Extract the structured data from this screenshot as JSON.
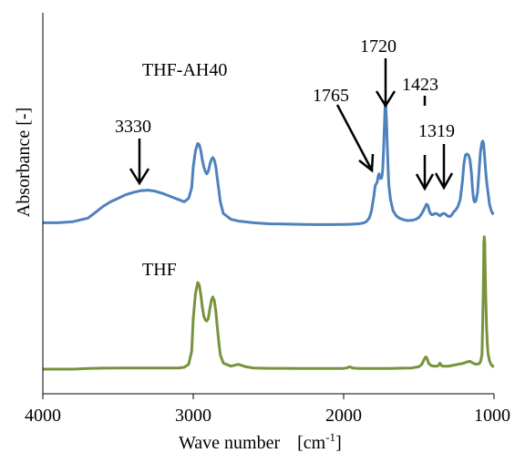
{
  "chart_data": {
    "type": "line",
    "title": "",
    "xlabel": "Wave number",
    "xlabel_unit_base": "[cm",
    "xlabel_unit_exp": "-1",
    "xlabel_unit_close": "]",
    "ylabel": "Absorbance [-]",
    "xlim": [
      4000,
      1000
    ],
    "x_reversed": true,
    "y_ticks_shown": false,
    "grid": false,
    "x_tick_labels": [
      "4000",
      "3000",
      "2000",
      "1000"
    ],
    "series": [
      {
        "name": "THF-AH40",
        "color": "#4f81bd",
        "x": [
          4000,
          3900,
          3800,
          3700,
          3650,
          3600,
          3550,
          3500,
          3450,
          3400,
          3350,
          3300,
          3250,
          3200,
          3150,
          3100,
          3060,
          3030,
          3010,
          3000,
          2985,
          2970,
          2960,
          2950,
          2940,
          2930,
          2920,
          2910,
          2900,
          2890,
          2880,
          2870,
          2860,
          2850,
          2840,
          2830,
          2820,
          2800,
          2750,
          2700,
          2600,
          2500,
          2400,
          2300,
          2200,
          2100,
          2000,
          1950,
          1900,
          1870,
          1850,
          1830,
          1815,
          1800,
          1790,
          1780,
          1775,
          1770,
          1765,
          1760,
          1755,
          1750,
          1745,
          1740,
          1735,
          1730,
          1725,
          1722,
          1720,
          1718,
          1715,
          1710,
          1705,
          1700,
          1690,
          1680,
          1670,
          1650,
          1630,
          1600,
          1580,
          1560,
          1540,
          1520,
          1500,
          1480,
          1460,
          1450,
          1440,
          1430,
          1423,
          1415,
          1405,
          1395,
          1385,
          1370,
          1360,
          1350,
          1340,
          1330,
          1319,
          1305,
          1290,
          1280,
          1270,
          1255,
          1240,
          1225,
          1210,
          1200,
          1190,
          1180,
          1170,
          1160,
          1150,
          1145,
          1140,
          1135,
          1130,
          1125,
          1120,
          1110,
          1100,
          1090,
          1080,
          1075,
          1070,
          1065,
          1060,
          1055,
          1050,
          1040,
          1030,
          1020,
          1010,
          1005,
          1000
        ],
        "y": [
          0.02,
          0.02,
          0.03,
          0.06,
          0.11,
          0.16,
          0.2,
          0.23,
          0.26,
          0.28,
          0.295,
          0.3,
          0.29,
          0.27,
          0.245,
          0.22,
          0.2,
          0.23,
          0.32,
          0.5,
          0.64,
          0.7,
          0.69,
          0.64,
          0.56,
          0.5,
          0.46,
          0.44,
          0.46,
          0.52,
          0.56,
          0.58,
          0.56,
          0.5,
          0.4,
          0.3,
          0.2,
          0.1,
          0.05,
          0.035,
          0.02,
          0.012,
          0.009,
          0.007,
          0.005,
          0.005,
          0.006,
          0.008,
          0.012,
          0.018,
          0.03,
          0.06,
          0.12,
          0.24,
          0.34,
          0.36,
          0.38,
          0.42,
          0.44,
          0.42,
          0.4,
          0.4,
          0.42,
          0.48,
          0.62,
          0.82,
          1,
          1.06,
          1.02,
          0.98,
          0.9,
          0.7,
          0.5,
          0.35,
          0.23,
          0.17,
          0.12,
          0.08,
          0.06,
          0.045,
          0.04,
          0.04,
          0.042,
          0.05,
          0.065,
          0.1,
          0.15,
          0.18,
          0.17,
          0.12,
          0.1,
          0.09,
          0.09,
          0.1,
          0.1,
          0.09,
          0.08,
          0.09,
          0.1,
          0.1,
          0.09,
          0.075,
          0.075,
          0.09,
          0.11,
          0.13,
          0.16,
          0.22,
          0.38,
          0.53,
          0.6,
          0.61,
          0.6,
          0.56,
          0.44,
          0.34,
          0.27,
          0.22,
          0.2,
          0.2,
          0.21,
          0.28,
          0.45,
          0.63,
          0.71,
          0.72,
          0.7,
          0.63,
          0.54,
          0.46,
          0.38,
          0.28,
          0.18,
          0.13,
          0.1,
          0.1,
          0.1
        ]
      },
      {
        "name": "THF",
        "color": "#77933c",
        "x": [
          4000,
          3900,
          3800,
          3700,
          3600,
          3500,
          3400,
          3300,
          3200,
          3100,
          3060,
          3030,
          3010,
          3000,
          2985,
          2970,
          2960,
          2950,
          2940,
          2930,
          2920,
          2910,
          2900,
          2890,
          2880,
          2870,
          2860,
          2850,
          2840,
          2830,
          2820,
          2800,
          2750,
          2700,
          2650,
          2600,
          2500,
          2400,
          2300,
          2200,
          2100,
          2000,
          1980,
          1960,
          1940,
          1900,
          1800,
          1700,
          1600,
          1550,
          1500,
          1480,
          1465,
          1455,
          1450,
          1445,
          1435,
          1420,
          1400,
          1380,
          1370,
          1360,
          1350,
          1340,
          1320,
          1300,
          1280,
          1260,
          1240,
          1220,
          1200,
          1180,
          1160,
          1140,
          1120,
          1100,
          1090,
          1080,
          1075,
          1070,
          1068,
          1065,
          1062,
          1060,
          1055,
          1050,
          1045,
          1040,
          1030,
          1020,
          1010,
          1000
        ],
        "y": [
          0,
          0,
          0,
          0.005,
          0.008,
          0.01,
          0.01,
          0.01,
          0.01,
          0.01,
          0.015,
          0.04,
          0.15,
          0.42,
          0.63,
          0.72,
          0.7,
          0.62,
          0.52,
          0.44,
          0.41,
          0.4,
          0.42,
          0.5,
          0.57,
          0.6,
          0.57,
          0.48,
          0.35,
          0.22,
          0.12,
          0.05,
          0.025,
          0.04,
          0.02,
          0.01,
          0.007,
          0.007,
          0.006,
          0.005,
          0.005,
          0.006,
          0.01,
          0.02,
          0.01,
          0.006,
          0.006,
          0.006,
          0.008,
          0.01,
          0.02,
          0.04,
          0.08,
          0.1,
          0.1,
          0.085,
          0.05,
          0.03,
          0.025,
          0.025,
          0.03,
          0.05,
          0.03,
          0.025,
          0.025,
          0.025,
          0.03,
          0.035,
          0.04,
          0.045,
          0.05,
          0.06,
          0.065,
          0.05,
          0.04,
          0.045,
          0.06,
          0.12,
          0.4,
          0.8,
          1.05,
          1.1,
          1.05,
          0.9,
          0.6,
          0.35,
          0.22,
          0.13,
          0.07,
          0.04,
          0.025,
          0.02
        ]
      }
    ],
    "annotations": [
      {
        "text": "3330",
        "x": 3330,
        "series": 0
      },
      {
        "text": "1765",
        "x": 1765,
        "series": 0
      },
      {
        "text": "1720",
        "x": 1720,
        "series": 0
      },
      {
        "text": "1423",
        "x": 1423,
        "series": 0
      },
      {
        "text": "1319",
        "x": 1319,
        "series": 0
      }
    ]
  }
}
